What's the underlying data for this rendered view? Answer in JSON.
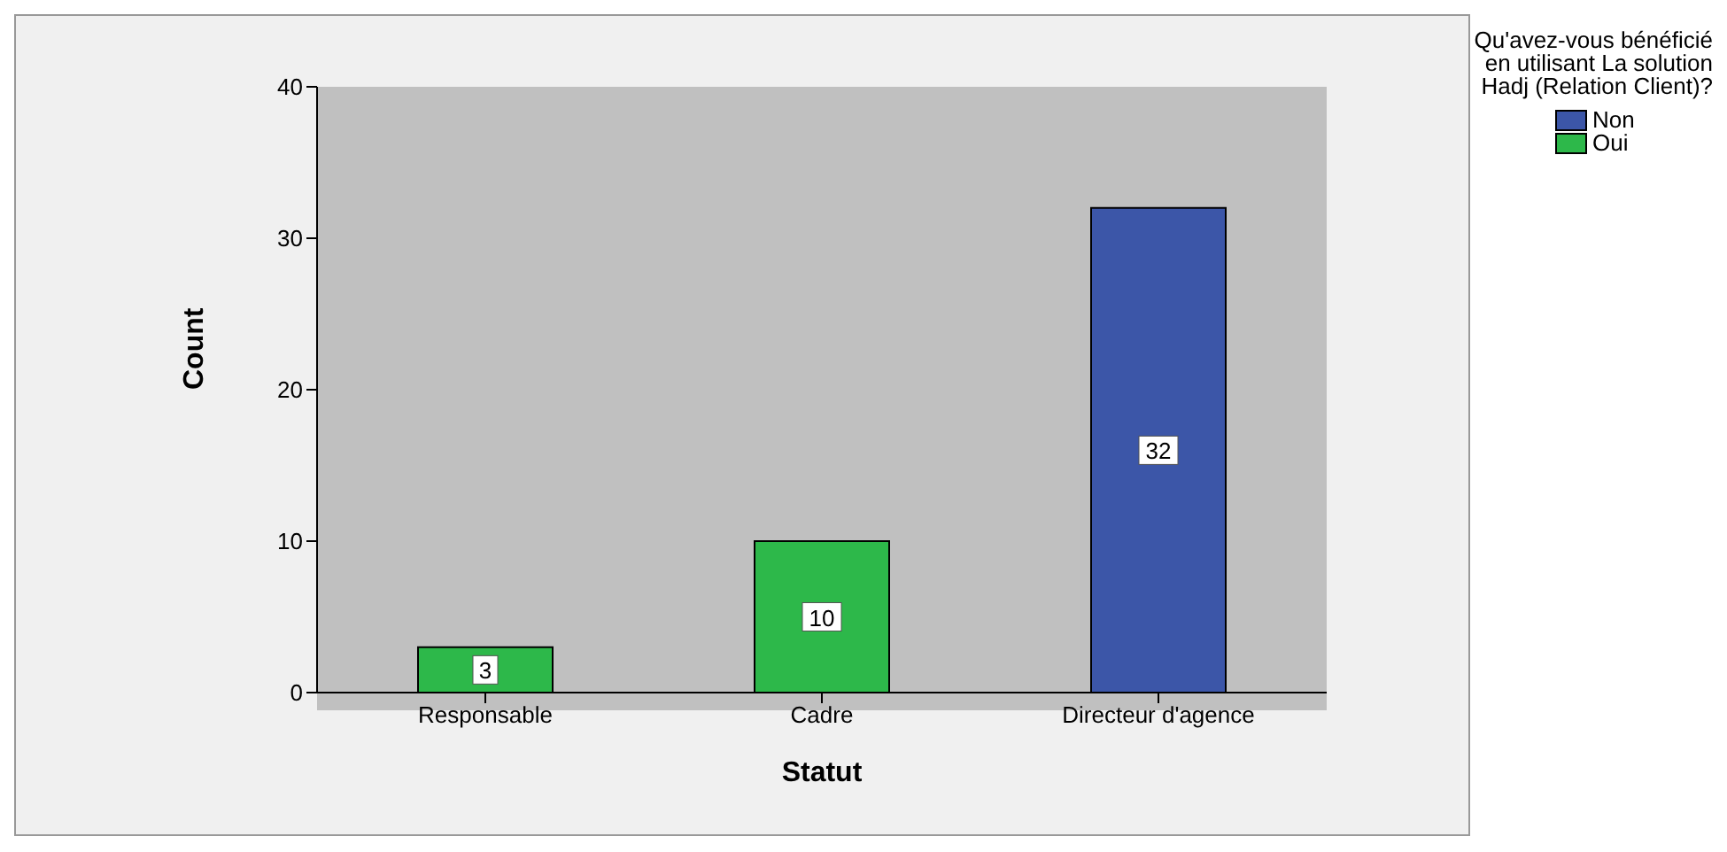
{
  "chart_data": {
    "type": "bar",
    "xlabel": "Statut",
    "ylabel": "Count",
    "legend_title": "Qu'avez-vous bénéficié en utilisant La solution Hadj (Relation Client)?",
    "categories": [
      "Responsable",
      "Cadre",
      "Directeur d'agence"
    ],
    "series": [
      {
        "name": "Non",
        "color": "#3c56a8",
        "values": [
          null,
          null,
          32
        ]
      },
      {
        "name": "Oui",
        "color": "#2db84a",
        "values": [
          3,
          10,
          null
        ]
      }
    ],
    "stacked": true,
    "ylim": [
      0,
      40
    ],
    "yticks": [
      0,
      10,
      20,
      30,
      40
    ],
    "data_labels": true,
    "grid": false,
    "legend": "top right"
  }
}
